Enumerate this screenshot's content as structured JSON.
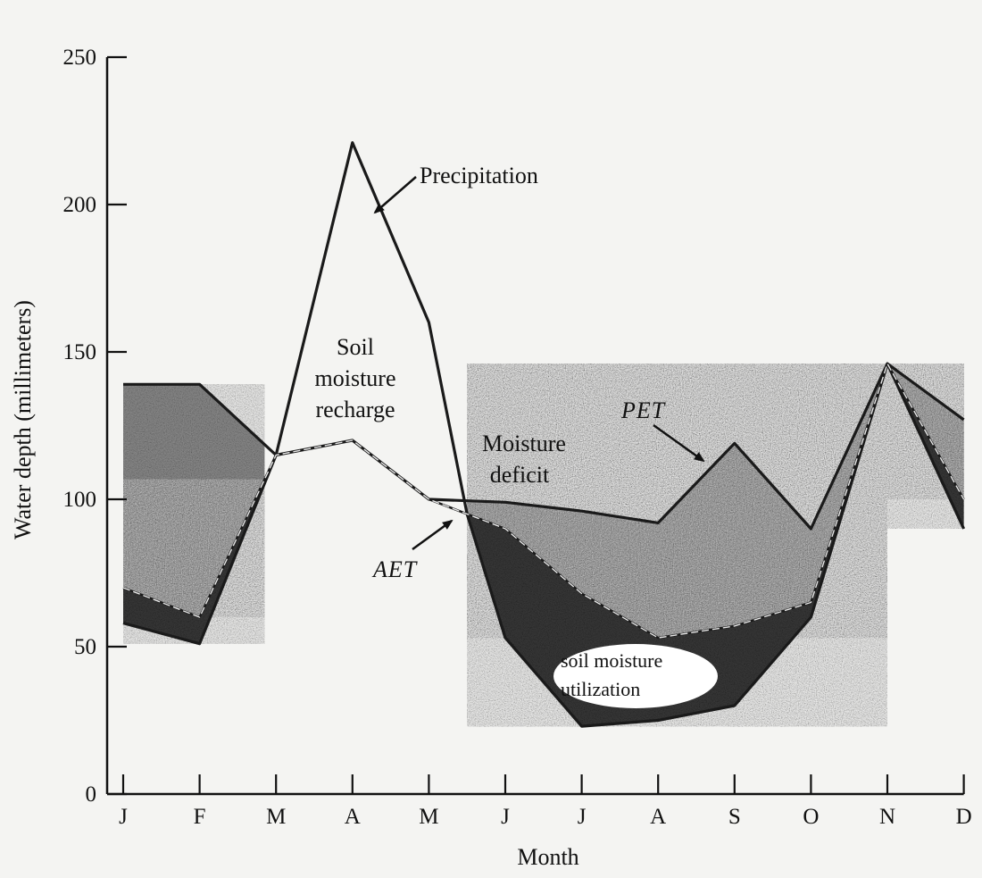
{
  "chart_data": {
    "type": "line",
    "xlabel": "Month",
    "ylabel": "Water depth (millimeters)",
    "ylim": [
      0,
      250
    ],
    "y_ticks": [
      "0",
      "50",
      "100",
      "150",
      "200",
      "250"
    ],
    "categories": [
      "J",
      "F",
      "M",
      "A",
      "M",
      "J",
      "J",
      "A",
      "S",
      "O",
      "N",
      "D"
    ],
    "series": [
      {
        "name": "Precipitation",
        "x": [
          0,
          1,
          2,
          3,
          4,
          4.5,
          5,
          6,
          7,
          8,
          9,
          10,
          11
        ],
        "values": [
          58,
          51,
          115,
          221,
          160,
          95,
          53,
          23,
          25,
          30,
          60,
          146,
          90
        ]
      },
      {
        "name": "PET",
        "x": [
          0,
          1,
          2,
          3,
          4,
          5,
          6,
          7,
          8,
          9,
          10,
          11
        ],
        "values": [
          139,
          139,
          115,
          120,
          100,
          99,
          96,
          92,
          119,
          90,
          146,
          127
        ]
      },
      {
        "name": "AET",
        "x": [
          0,
          1,
          2,
          3,
          4,
          5,
          6,
          7,
          8,
          9,
          10,
          11
        ],
        "values": [
          70,
          60,
          115,
          120,
          100,
          90,
          68,
          53,
          57,
          65,
          146,
          100
        ]
      }
    ],
    "annotations": [
      {
        "lines": [
          "Precipitation"
        ]
      },
      {
        "lines": [
          "Soil",
          "moisture",
          "recharge"
        ]
      },
      {
        "lines": [
          "Moisture",
          "deficit"
        ]
      },
      {
        "lines": [
          "PET"
        ]
      },
      {
        "lines": [
          "AET"
        ]
      },
      {
        "lines": [
          "soil moisture",
          "utilization"
        ]
      }
    ],
    "grid": false,
    "colors": {
      "line": "#1a1a1a",
      "deficit_fill": "#8e8e8e",
      "utilization_fill": "#3a3a3a",
      "background": "#f4f4f2"
    }
  }
}
